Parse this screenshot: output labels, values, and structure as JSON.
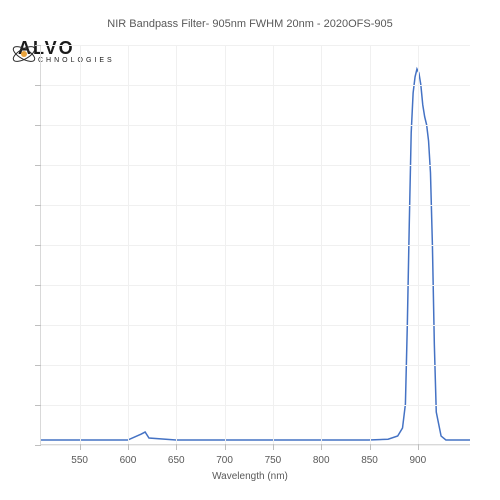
{
  "chart": {
    "type": "line",
    "title": "NIR Bandpass Filter- 905nm FWHM 20nm - 2020OFS-905",
    "title_fontsize": 11,
    "title_color": "#595959",
    "xlabel": "Wavelength (nm)",
    "xlabel_fontsize": 10,
    "background_color": "#ffffff",
    "grid_color": "#f0f0f0",
    "axis_color": "#d9d9d9",
    "tick_color": "#bfbfbf",
    "line_color": "#4472c4",
    "line_width": 1.5,
    "xlim": [
      510,
      955
    ],
    "ylim": [
      0,
      100
    ],
    "xticks": [
      550,
      600,
      650,
      700,
      750,
      800,
      850,
      900
    ],
    "y_gridlines": 10,
    "series": {
      "wavelength": [
        510,
        550,
        600,
        614,
        618,
        622,
        650,
        700,
        750,
        800,
        850,
        870,
        880,
        885,
        888,
        890,
        892,
        894,
        896,
        898,
        900,
        902,
        904,
        906,
        908,
        910,
        912,
        914,
        916,
        918,
        920,
        925,
        930,
        940,
        955
      ],
      "transmission": [
        1,
        1,
        1,
        2.5,
        3,
        1.5,
        1,
        1,
        1,
        1,
        1,
        1.2,
        2,
        4,
        10,
        30,
        55,
        78,
        88,
        92,
        94,
        93,
        90,
        85,
        82,
        80,
        76,
        68,
        50,
        25,
        8,
        2,
        1,
        1,
        1
      ]
    }
  },
  "logo": {
    "brand_text": "ALVO",
    "sub_text": "CHNOLOGIES",
    "icon_stroke": "#2b2b2b",
    "icon_dot": "#e8a33d"
  }
}
